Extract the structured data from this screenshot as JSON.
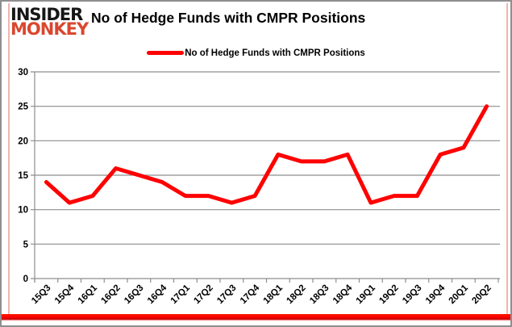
{
  "header": {
    "logo_line1": "INSIDER",
    "logo_line2": "MONKEY",
    "title": "No of Hedge Funds with CMPR Positions"
  },
  "legend": {
    "label": "No of Hedge Funds with CMPR Positions"
  },
  "colors": {
    "line": "#ff0000",
    "grid": "#8e8e8e",
    "logo_accent": "#d9472e",
    "bottom_bar": "#ff0000",
    "side_border": "#f0b5ae",
    "frame_border": "#8f8f8f"
  },
  "chart_data": {
    "type": "line",
    "title": "No of Hedge Funds with CMPR Positions",
    "categories": [
      "15Q3",
      "15Q4",
      "16Q1",
      "16Q2",
      "16Q3",
      "16Q4",
      "17Q1",
      "17Q2",
      "17Q3",
      "17Q4",
      "18Q1",
      "18Q2",
      "18Q3",
      "18Q4",
      "19Q1",
      "19Q2",
      "19Q3",
      "19Q4",
      "20Q1",
      "20Q2"
    ],
    "series": [
      {
        "name": "No of Hedge Funds with CMPR Positions",
        "values": [
          14,
          11,
          12,
          16,
          15,
          14,
          12,
          12,
          11,
          12,
          18,
          17,
          17,
          18,
          11,
          12,
          12,
          18,
          19,
          25
        ]
      }
    ],
    "xlabel": "",
    "ylabel": "",
    "ylim": [
      0,
      30
    ],
    "yticks": [
      0,
      5,
      10,
      15,
      20,
      25,
      30
    ],
    "grid": true,
    "legend_position": "top",
    "line_color": "#ff0000"
  }
}
